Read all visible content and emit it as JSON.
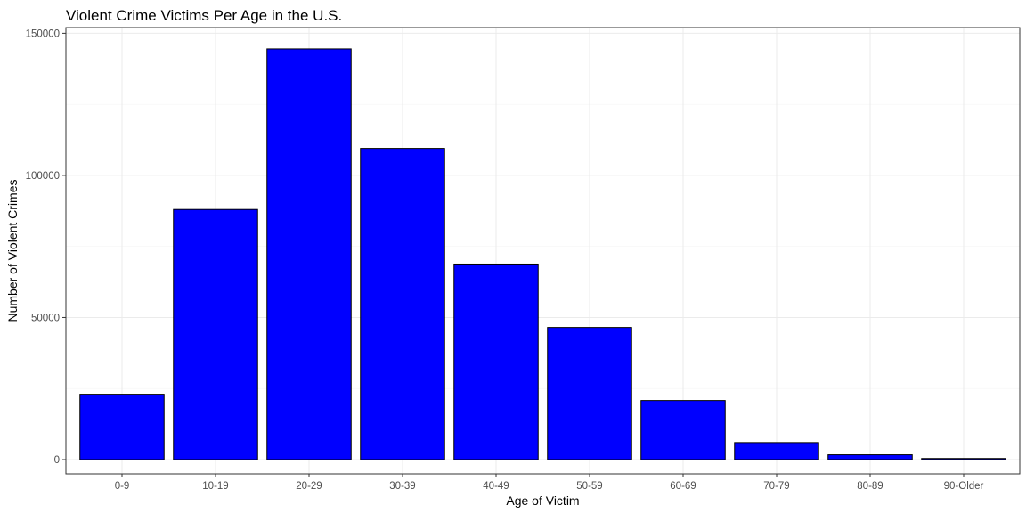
{
  "chart_data": {
    "type": "bar",
    "title": "Violent Crime Victims Per Age in the U.S.",
    "xlabel": "Age of Victim",
    "ylabel": "Number of Violent Crimes",
    "categories": [
      "0-9",
      "10-19",
      "20-29",
      "30-39",
      "40-49",
      "50-59",
      "60-69",
      "70-79",
      "80-89",
      "90-Older"
    ],
    "values": [
      23000,
      88000,
      144500,
      109500,
      68800,
      46500,
      20800,
      6000,
      1700,
      400
    ],
    "ylim": [
      0,
      152000
    ],
    "yticks": [
      0,
      50000,
      100000,
      150000
    ],
    "ytick_labels": [
      "0",
      "50000",
      "100000",
      "150000"
    ],
    "bar_color": "#0000ff",
    "bar_outline_color": "#000000",
    "grid": true,
    "legend": "none"
  }
}
